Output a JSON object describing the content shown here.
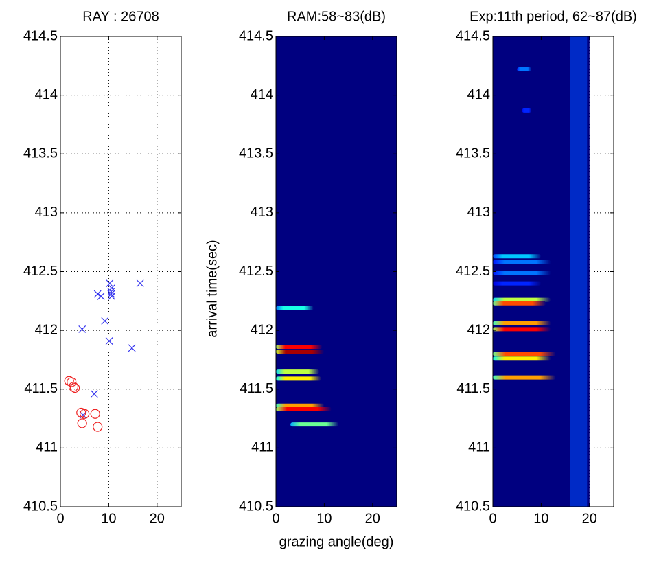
{
  "chart_data": [
    {
      "type": "scatter",
      "title": "RAY : 26708",
      "xlim": [
        0,
        25
      ],
      "xticks": [
        0,
        10,
        20
      ],
      "ylim": [
        410.5,
        414.5
      ],
      "yticks": [
        410.5,
        411,
        411.5,
        412,
        412.5,
        413,
        413.5,
        414,
        414.5
      ],
      "grid": true,
      "series": [
        {
          "marker": "x",
          "color": "#3333ee",
          "x": [
            7.7,
            8.4,
            10.2,
            10.6,
            10.5,
            10.6,
            10.5,
            16.5,
            9.2,
            4.5,
            10.1,
            14.8,
            7.0,
            4.7
          ],
          "y": [
            412.31,
            412.29,
            412.4,
            412.36,
            412.33,
            412.29,
            412.31,
            412.4,
            412.08,
            412.01,
            411.91,
            411.85,
            411.46,
            411.28
          ]
        },
        {
          "marker": "o",
          "color": "#ee2222",
          "x": [
            1.8,
            2.3,
            2.7,
            3.0,
            4.3,
            5.0,
            4.5,
            7.2,
            7.7
          ],
          "y": [
            411.57,
            411.56,
            411.52,
            411.51,
            411.3,
            411.29,
            411.21,
            411.29,
            411.18
          ]
        }
      ]
    },
    {
      "type": "heatmap",
      "title": "RAM:58~83(dB)",
      "xlabel": "grazing angle(deg)",
      "ylabel": "arrival time(sec)",
      "xlim": [
        0,
        25
      ],
      "xticks": [
        0,
        10,
        20
      ],
      "ylim": [
        410.5,
        414.5
      ],
      "yticks": [
        410.5,
        411,
        411.5,
        412,
        412.5,
        413,
        413.5,
        414,
        414.5
      ],
      "grid": false,
      "image_x": [
        0,
        25
      ],
      "clim": [
        58,
        83
      ],
      "streaks": [
        {
          "y": 412.19,
          "x": [
            0,
            7.8
          ],
          "db": 68
        },
        {
          "y": 411.86,
          "x": [
            0,
            9.6
          ],
          "db": 80
        },
        {
          "y": 411.82,
          "x": [
            0,
            10
          ],
          "db": 82
        },
        {
          "y": 411.65,
          "x": [
            0,
            9
          ],
          "db": 72
        },
        {
          "y": 411.59,
          "x": [
            0,
            9.4
          ],
          "db": 74
        },
        {
          "y": 411.36,
          "x": [
            0,
            10
          ],
          "db": 76
        },
        {
          "y": 411.33,
          "x": [
            0,
            11.5
          ],
          "db": 80
        },
        {
          "y": 411.2,
          "x": [
            3,
            13
          ],
          "db": 70
        }
      ]
    },
    {
      "type": "heatmap",
      "title": "Exp:11th period, 62~87(dB)",
      "xlim": [
        0,
        25
      ],
      "xticks": [
        0,
        10,
        20
      ],
      "ylim": [
        410.5,
        414.5
      ],
      "yticks": [
        410.5,
        411,
        411.5,
        412,
        412.5,
        413,
        413.5,
        414,
        414.5
      ],
      "grid": true,
      "image_x": [
        0,
        20
      ],
      "clim": [
        62,
        87
      ],
      "column": {
        "x": [
          16,
          19.5
        ],
        "db": 67
      },
      "streaks": [
        {
          "y": 414.22,
          "x": [
            5,
            8
          ],
          "db": 68
        },
        {
          "y": 413.87,
          "x": [
            6,
            8
          ],
          "db": 66
        },
        {
          "y": 412.63,
          "x": [
            0,
            10
          ],
          "db": 70
        },
        {
          "y": 412.58,
          "x": [
            0,
            12
          ],
          "db": 68
        },
        {
          "y": 412.49,
          "x": [
            0,
            12
          ],
          "db": 68
        },
        {
          "y": 412.4,
          "x": [
            0,
            10
          ],
          "db": 66
        },
        {
          "y": 412.26,
          "x": [
            0,
            12
          ],
          "db": 76
        },
        {
          "y": 412.23,
          "x": [
            0,
            11
          ],
          "db": 82
        },
        {
          "y": 412.06,
          "x": [
            0,
            12
          ],
          "db": 80
        },
        {
          "y": 412.01,
          "x": [
            0,
            12
          ],
          "db": 84
        },
        {
          "y": 411.8,
          "x": [
            0,
            13
          ],
          "db": 82
        },
        {
          "y": 411.76,
          "x": [
            0,
            12
          ],
          "db": 78
        },
        {
          "y": 411.6,
          "x": [
            0,
            13
          ],
          "db": 80
        }
      ]
    }
  ]
}
